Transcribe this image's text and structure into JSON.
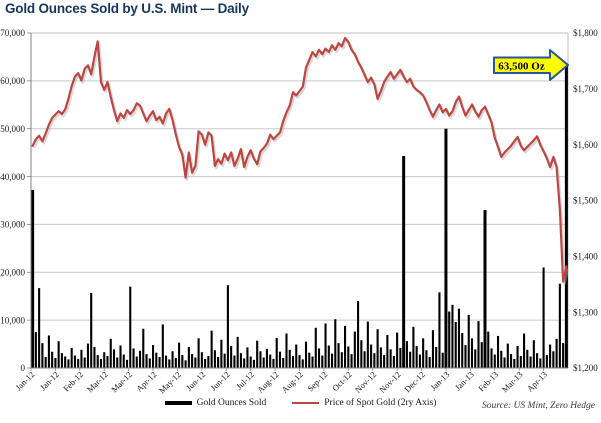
{
  "title": "Gold Ounces Sold by U.S. Mint — Daily",
  "source_note": "Source: US Mint, Zero Hedge",
  "annotation": {
    "label": "63,500 Oz",
    "fill": "#FFFF00",
    "border": "#2A5699",
    "text_color": "#000000"
  },
  "legend": [
    {
      "label": "Gold Ounces Sold",
      "color": "#000000",
      "marker": "bar"
    },
    {
      "label": "Price of Spot Gold (2ry Axis)",
      "color": "#BC4742",
      "marker": "line"
    }
  ],
  "colors": {
    "title": "#17365D",
    "bar": "#000000",
    "line": "#BC4742",
    "grid": "#C8C8C8",
    "axis": "#808080",
    "plot_border": "#BFBFBF",
    "tick_text": "#1a1a1a"
  },
  "chart_data": {
    "type": "bar",
    "title": "Gold Ounces Sold by U.S. Mint — Daily",
    "dual_axis": true,
    "grid": "horizontal",
    "legend_position": "bottom-center",
    "left_axis": {
      "min": 0,
      "max": 70000,
      "tick_step": 10000,
      "tick_labels": [
        "0",
        "10,000",
        "20,000",
        "30,000",
        "40,000",
        "50,000",
        "60,000",
        "70,000"
      ]
    },
    "right_axis": {
      "min": 1200,
      "max": 1800,
      "tick_step": 100,
      "tick_labels": [
        "$1,200",
        "$1,300",
        "$1,400",
        "$1,500",
        "$1,600",
        "$1,700",
        "$1,800"
      ]
    },
    "x_tick_labels": [
      "Jan-12",
      "Jan-12",
      "Feb-12",
      "Mar-12",
      "Mar-12",
      "Apr-12",
      "May-12",
      "Jun-12",
      "Jun-12",
      "Jul-12",
      "Aug-12",
      "Aug-12",
      "Sep-12",
      "Oct-12",
      "Nov-12",
      "Nov-12",
      "Dec-12",
      "Jan-13",
      "Jan-13",
      "Feb-13",
      "Mar-13",
      "Apr-13"
    ],
    "series": [
      {
        "name": "Gold Ounces Sold",
        "type": "bar",
        "axis": "left",
        "color": "#000000",
        "values": [
          37200,
          7500,
          16700,
          5200,
          2300,
          6800,
          3400,
          2100,
          5600,
          3100,
          2400,
          1800,
          4200,
          2600,
          1900,
          3800,
          2200,
          5100,
          15700,
          4400,
          2700,
          1900,
          3300,
          2500,
          6100,
          3900,
          2200,
          4700,
          2800,
          1700,
          17000,
          4100,
          2400,
          3600,
          8200,
          2900,
          2000,
          4800,
          3200,
          2300,
          9100,
          2600,
          1800,
          3500,
          2100,
          5300,
          2700,
          1600,
          4400,
          2900,
          2200,
          6200,
          3300,
          1900,
          2500,
          7800,
          3700,
          2300,
          5900,
          3000,
          17300,
          4600,
          2600,
          6500,
          3100,
          2000,
          4300,
          2400,
          1700,
          5700,
          3500,
          2200,
          4000,
          2800,
          1900,
          6300,
          3400,
          2100,
          7200,
          3800,
          2500,
          4900,
          2700,
          1800,
          5500,
          3200,
          2400,
          8400,
          4100,
          2600,
          9300,
          4700,
          3000,
          10200,
          5200,
          3300,
          8800,
          4500,
          2900,
          7600,
          14000,
          5800,
          3500,
          9700,
          4900,
          3100,
          8100,
          4300,
          2700,
          6900,
          3900,
          2500,
          7400,
          4200,
          44300,
          5600,
          3400,
          8600,
          4600,
          2800,
          6200,
          3700,
          2300,
          7900,
          4400,
          15800,
          3200,
          50000,
          11800,
          13200,
          9600,
          12400,
          7300,
          4800,
          11100,
          6200,
          3900,
          9800,
          5400,
          33000,
          7600,
          4100,
          2800,
          6700,
          3600,
          2200,
          5100,
          2900,
          1900,
          4600,
          2500,
          7200,
          3800,
          2400,
          5800,
          3100,
          2000,
          21000,
          2700,
          4900,
          3500,
          6100,
          17600,
          5200,
          63500
        ]
      },
      {
        "name": "Price of Spot Gold (2ry Axis)",
        "type": "line",
        "axis": "right",
        "color": "#BC4742",
        "values": [
          1598,
          1610,
          1616,
          1606,
          1620,
          1636,
          1648,
          1654,
          1660,
          1655,
          1663,
          1682,
          1705,
          1722,
          1728,
          1715,
          1736,
          1742,
          1726,
          1758,
          1785,
          1712,
          1698,
          1712,
          1686,
          1662,
          1642,
          1656,
          1648,
          1662,
          1655,
          1662,
          1674,
          1670,
          1656,
          1642,
          1652,
          1660,
          1644,
          1650,
          1638,
          1656,
          1664,
          1644,
          1618,
          1596,
          1582,
          1541,
          1586,
          1550,
          1562,
          1624,
          1618,
          1600,
          1622,
          1616,
          1562,
          1574,
          1566,
          1584,
          1572,
          1586,
          1562,
          1575,
          1592,
          1560,
          1578,
          1590,
          1575,
          1565,
          1588,
          1594,
          1602,
          1618,
          1610,
          1616,
          1622,
          1642,
          1658,
          1670,
          1694,
          1688,
          1696,
          1704,
          1738,
          1752,
          1766,
          1758,
          1770,
          1762,
          1772,
          1766,
          1778,
          1770,
          1782,
          1776,
          1791,
          1784,
          1770,
          1762,
          1748,
          1738,
          1725,
          1712,
          1720,
          1708,
          1682,
          1696,
          1712,
          1722,
          1730,
          1718,
          1726,
          1734,
          1722,
          1712,
          1718,
          1704,
          1698,
          1694,
          1688,
          1676,
          1662,
          1650,
          1662,
          1672,
          1658,
          1664,
          1652,
          1660,
          1676,
          1686,
          1668,
          1652,
          1662,
          1672,
          1660,
          1650,
          1662,
          1668,
          1654,
          1640,
          1612,
          1596,
          1578,
          1586,
          1592,
          1598,
          1606,
          1614,
          1598,
          1590,
          1596,
          1602,
          1608,
          1615,
          1600,
          1588,
          1576,
          1560,
          1578,
          1560,
          1483,
          1355,
          1382
        ]
      }
    ],
    "annotation": {
      "label": "63,500 Oz"
    }
  }
}
